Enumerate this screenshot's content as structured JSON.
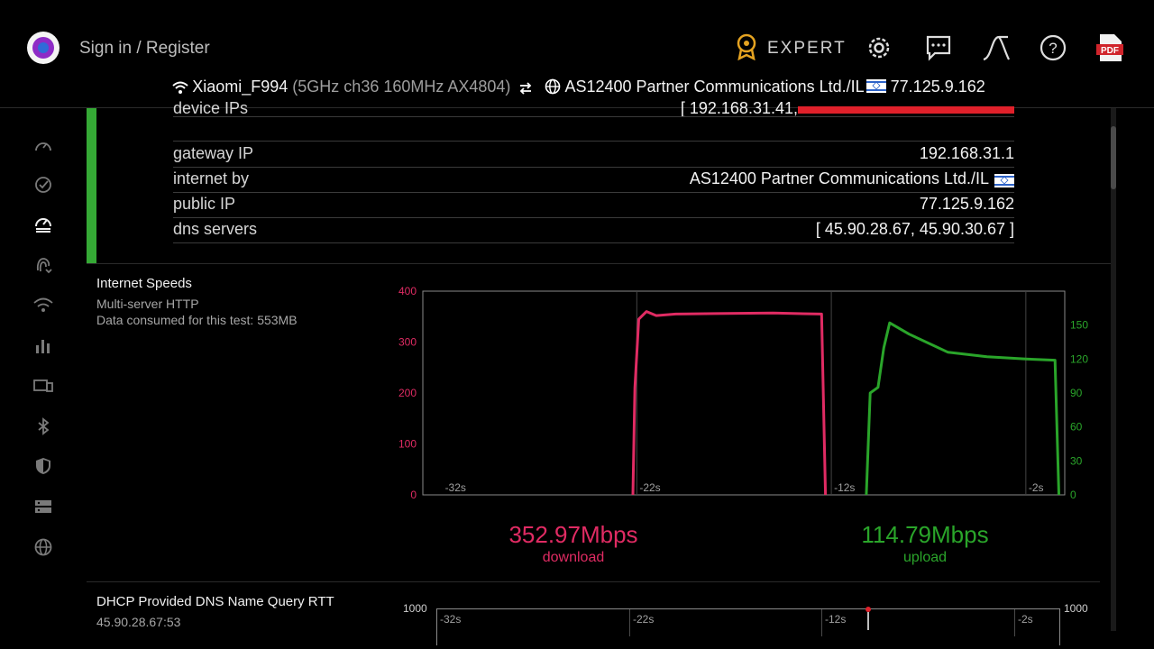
{
  "header": {
    "signin": "Sign in / Register",
    "expert": "EXPERT",
    "icons": [
      "logo-icon",
      "badge-icon",
      "settings-gear-icon",
      "chat-icon",
      "curve-icon",
      "help-icon",
      "pdf-icon"
    ],
    "pdf_label": "PDF"
  },
  "network": {
    "ssid": "Xiaomi_F994",
    "details": "(5GHz ch36 160MHz AX4804)",
    "isp": "AS12400 Partner Communications Ltd./IL",
    "ip": "77.125.9.162"
  },
  "info": {
    "partial_label": "device IPs",
    "partial_value": "[ 192.168.31.41,",
    "rows": [
      {
        "k": "gateway IP",
        "v": "192.168.31.1"
      },
      {
        "k": "internet by",
        "v": "AS12400 Partner Communications Ltd./IL"
      },
      {
        "k": "public IP",
        "v": "77.125.9.162"
      },
      {
        "k": "dns servers",
        "v": "[ 45.90.28.67, 45.90.30.67 ]"
      }
    ]
  },
  "speeds": {
    "title": "Internet Speeds",
    "method": "Multi-server HTTP",
    "consumed": "Data consumed for this test: 553MB",
    "download_value": "352.97Mbps",
    "download_label": "download",
    "upload_value": "114.79Mbps",
    "upload_label": "upload",
    "colors": {
      "download": "#e02b63",
      "upload": "#2aa52a"
    }
  },
  "dns_test": {
    "title": "DHCP Provided DNS Name Query RTT",
    "server": "45.90.28.67:53",
    "y_left": "1000",
    "y_right": "1000",
    "x_ticks": [
      "-32s",
      "-22s",
      "-12s",
      "-2s"
    ]
  },
  "chart_data": {
    "type": "line",
    "x_ticks": [
      "-32s",
      "-22s",
      "-12s",
      "-2s"
    ],
    "y_left": {
      "ticks": [
        "400",
        "300",
        "200",
        "100",
        "0"
      ],
      "range": [
        0,
        400
      ],
      "color": "#e02b63"
    },
    "y_right": {
      "ticks": [
        "150",
        "120",
        "90",
        "60",
        "30",
        "0"
      ],
      "range": [
        0,
        180
      ],
      "color": "#2aa52a"
    },
    "grid": "vertical",
    "series": [
      {
        "name": "download",
        "color": "#e02b63",
        "axis": "left",
        "points": [
          [
            -22.2,
            0
          ],
          [
            -22.1,
            210
          ],
          [
            -21.9,
            345
          ],
          [
            -21.5,
            360
          ],
          [
            -21,
            352
          ],
          [
            -20,
            355
          ],
          [
            -18,
            356
          ],
          [
            -15,
            357
          ],
          [
            -12.5,
            355
          ],
          [
            -12.3,
            0
          ]
        ]
      },
      {
        "name": "upload",
        "color": "#2aa52a",
        "axis": "right",
        "points": [
          [
            -10.2,
            0
          ],
          [
            -10,
            90
          ],
          [
            -9.6,
            95
          ],
          [
            -9.3,
            130
          ],
          [
            -9,
            152
          ],
          [
            -8,
            142
          ],
          [
            -6,
            126
          ],
          [
            -4,
            122
          ],
          [
            -2,
            120
          ],
          [
            -0.5,
            119
          ],
          [
            -0.3,
            0
          ]
        ]
      }
    ]
  }
}
